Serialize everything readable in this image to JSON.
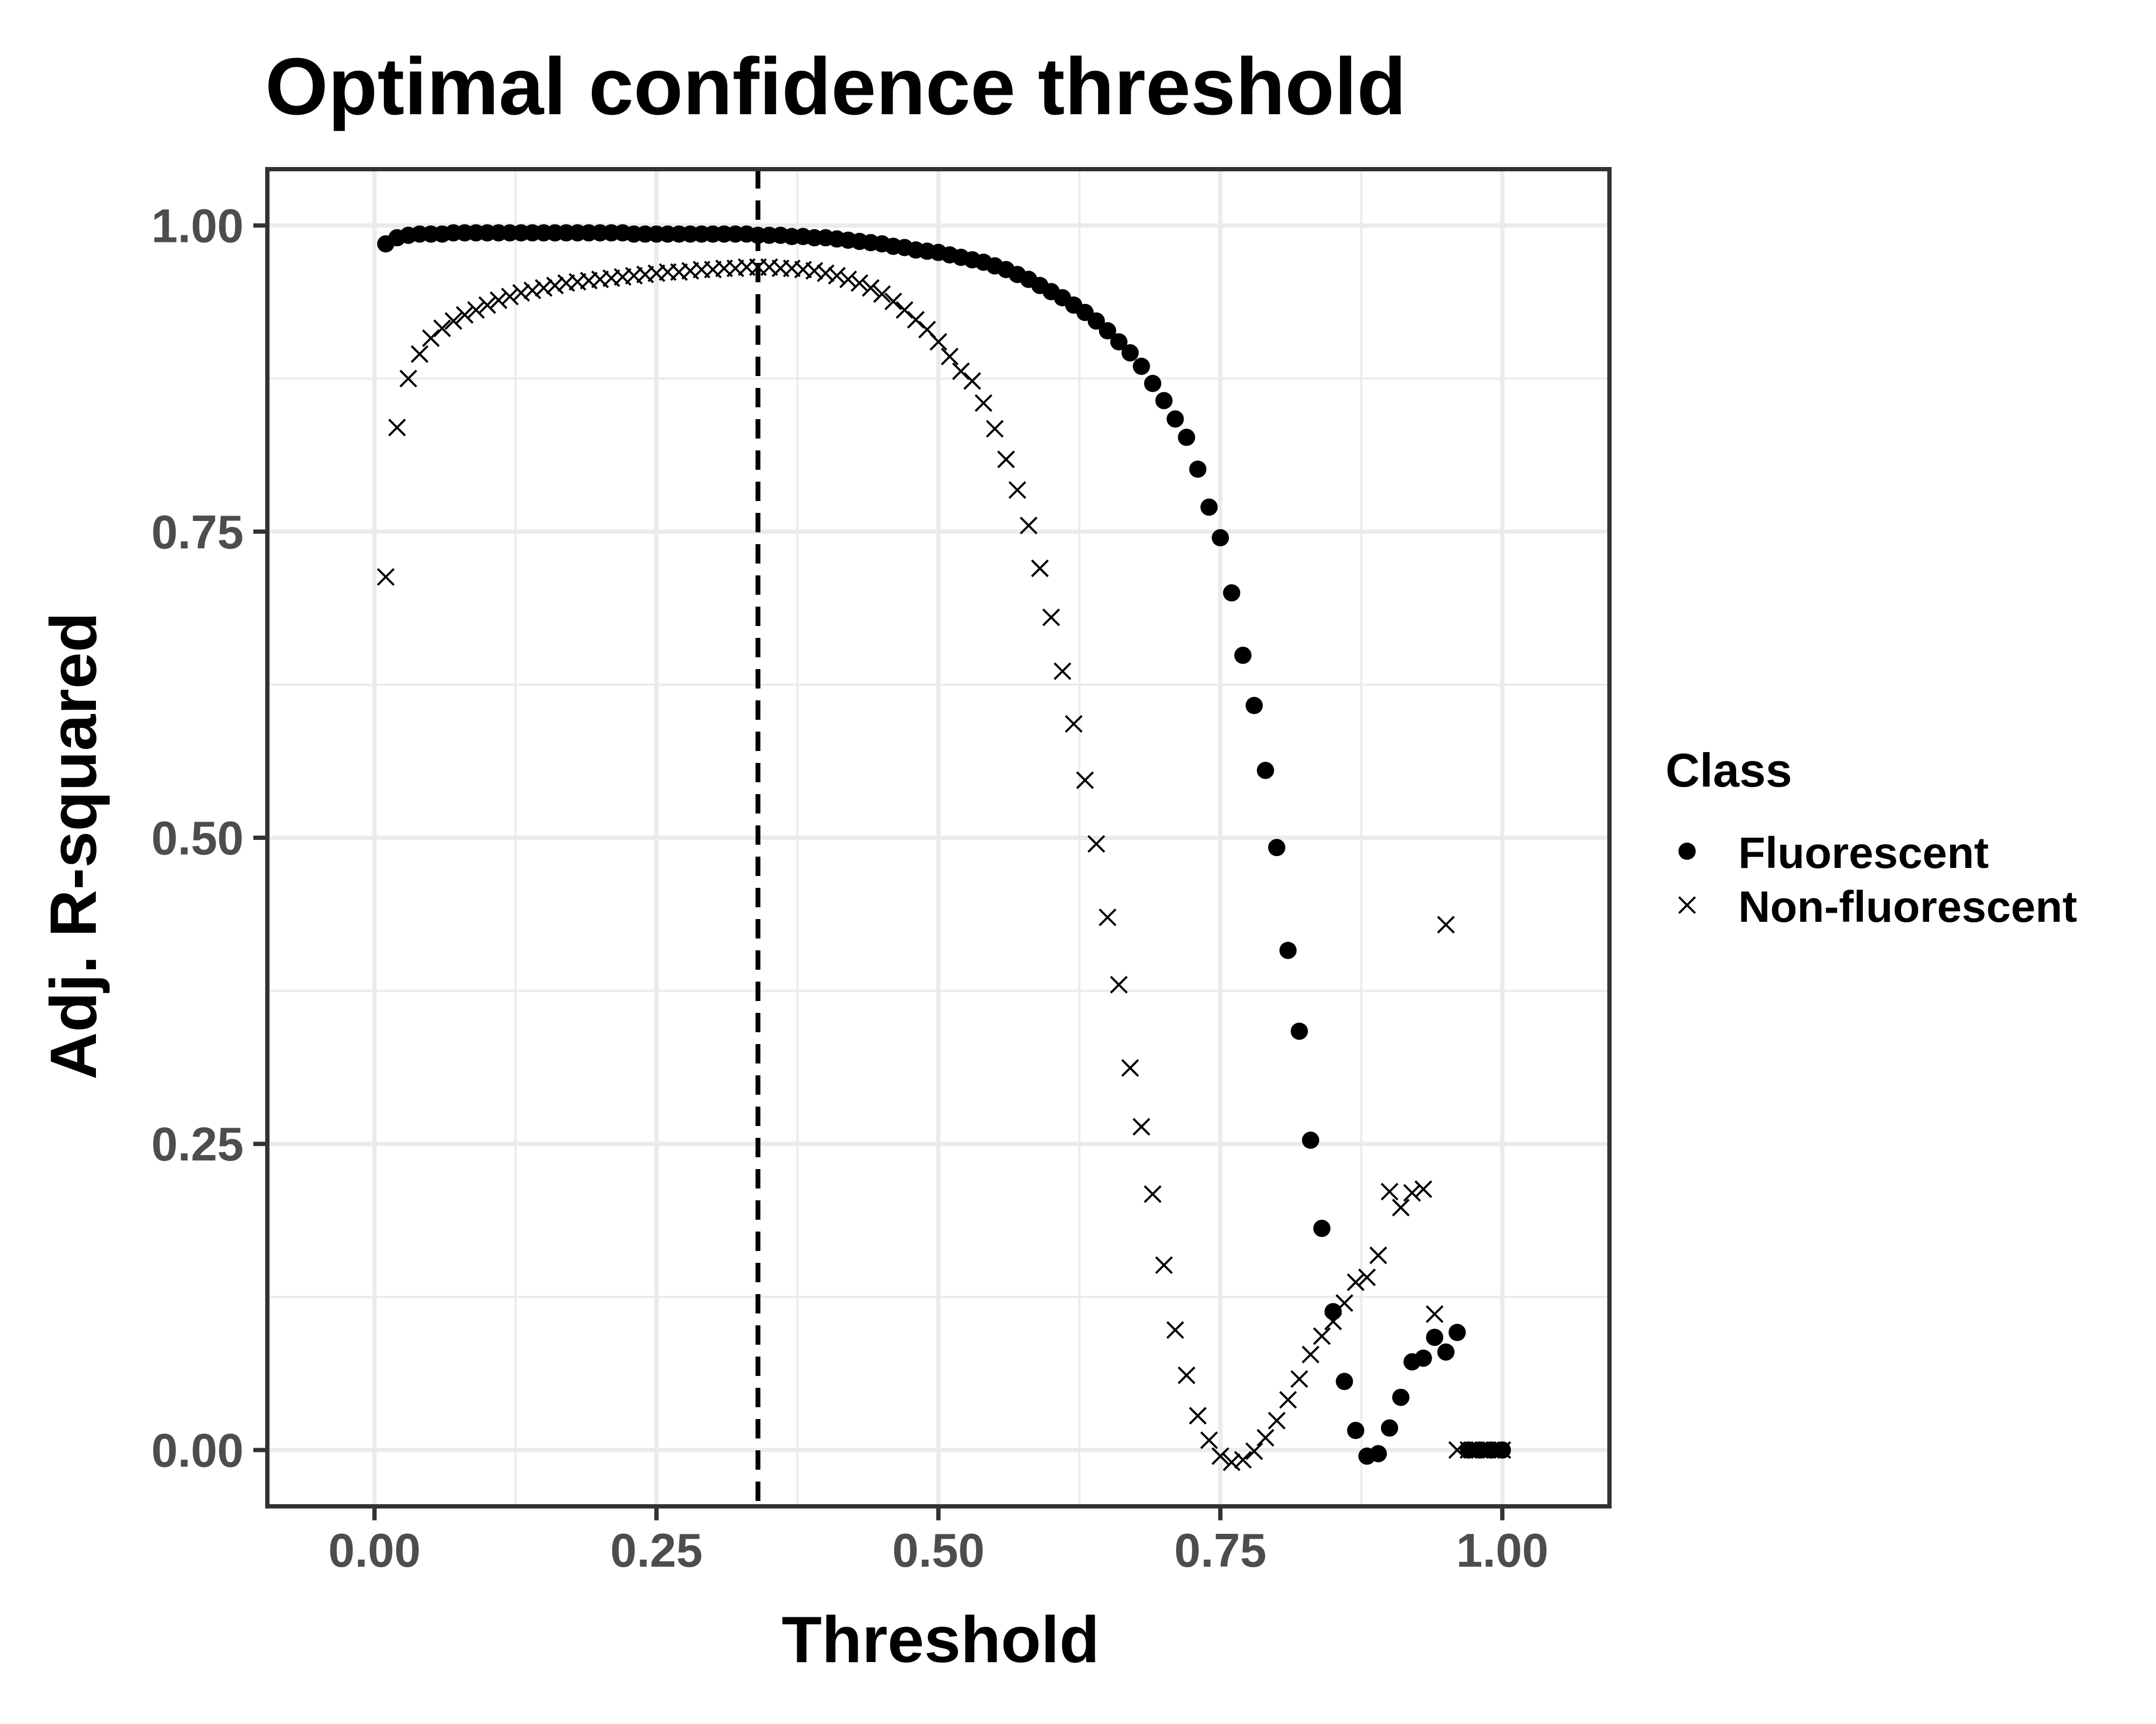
{
  "chart_data": {
    "type": "scatter",
    "title": "Optimal confidence threshold",
    "xlabel": "Threshold",
    "ylabel": "Adj. R-squared",
    "xlim": [
      -0.095,
      1.095
    ],
    "ylim": [
      -0.046,
      1.046
    ],
    "x_ticks": [
      "0.00",
      "0.25",
      "0.50",
      "0.75",
      "1.00"
    ],
    "y_ticks": [
      "0.00",
      "0.25",
      "0.50",
      "0.75",
      "1.00"
    ],
    "grid": true,
    "legend_position": "right",
    "legend_title": "Class",
    "reference_line": {
      "orientation": "vertical",
      "x": 0.34,
      "style": "dashed"
    },
    "series": [
      {
        "name": "Fluorescent",
        "marker": "filled-circle",
        "x": [
          0.01,
          0.02,
          0.03,
          0.04,
          0.05,
          0.06,
          0.07,
          0.08,
          0.09,
          0.1,
          0.11,
          0.12,
          0.13,
          0.14,
          0.15,
          0.16,
          0.17,
          0.18,
          0.19,
          0.2,
          0.21,
          0.22,
          0.23,
          0.24,
          0.25,
          0.26,
          0.27,
          0.28,
          0.29,
          0.3,
          0.31,
          0.32,
          0.33,
          0.34,
          0.35,
          0.36,
          0.37,
          0.38,
          0.39,
          0.4,
          0.41,
          0.42,
          0.43,
          0.44,
          0.45,
          0.46,
          0.47,
          0.48,
          0.49,
          0.5,
          0.51,
          0.52,
          0.53,
          0.54,
          0.55,
          0.56,
          0.57,
          0.58,
          0.59,
          0.6,
          0.61,
          0.62,
          0.63,
          0.64,
          0.65,
          0.66,
          0.67,
          0.68,
          0.69,
          0.7,
          0.71,
          0.72,
          0.73,
          0.74,
          0.75,
          0.76,
          0.77,
          0.78,
          0.79,
          0.8,
          0.81,
          0.82,
          0.83,
          0.84,
          0.85,
          0.86,
          0.87,
          0.88,
          0.89,
          0.9,
          0.91,
          0.92,
          0.93,
          0.94,
          0.95,
          0.96,
          0.97,
          0.98,
          0.99,
          1.0
        ],
        "y": [
          0.985,
          0.99,
          0.992,
          0.993,
          0.993,
          0.993,
          0.994,
          0.994,
          0.994,
          0.994,
          0.994,
          0.994,
          0.994,
          0.994,
          0.994,
          0.994,
          0.994,
          0.994,
          0.994,
          0.994,
          0.994,
          0.994,
          0.993,
          0.993,
          0.993,
          0.993,
          0.993,
          0.993,
          0.993,
          0.993,
          0.993,
          0.993,
          0.993,
          0.992,
          0.992,
          0.992,
          0.991,
          0.991,
          0.99,
          0.99,
          0.989,
          0.988,
          0.987,
          0.986,
          0.985,
          0.983,
          0.982,
          0.98,
          0.979,
          0.978,
          0.976,
          0.974,
          0.972,
          0.97,
          0.967,
          0.964,
          0.96,
          0.956,
          0.951,
          0.946,
          0.941,
          0.935,
          0.929,
          0.922,
          0.914,
          0.905,
          0.896,
          0.885,
          0.871,
          0.857,
          0.842,
          0.827,
          0.801,
          0.77,
          0.745,
          0.7,
          0.649,
          0.608,
          0.555,
          0.492,
          0.408,
          0.342,
          0.253,
          0.181,
          0.113,
          0.056,
          0.016,
          -0.005,
          -0.003,
          0.018,
          0.043,
          0.072,
          0.075,
          0.092,
          0.08,
          0.096,
          0.0,
          0.0,
          0.0,
          0.0
        ]
      },
      {
        "name": "Non-fluorescent",
        "marker": "x-cross",
        "x": [
          0.01,
          0.02,
          0.03,
          0.04,
          0.05,
          0.06,
          0.07,
          0.08,
          0.09,
          0.1,
          0.11,
          0.12,
          0.13,
          0.14,
          0.15,
          0.16,
          0.17,
          0.18,
          0.19,
          0.2,
          0.21,
          0.22,
          0.23,
          0.24,
          0.25,
          0.26,
          0.27,
          0.28,
          0.29,
          0.3,
          0.31,
          0.32,
          0.33,
          0.34,
          0.35,
          0.36,
          0.37,
          0.38,
          0.39,
          0.4,
          0.41,
          0.42,
          0.43,
          0.44,
          0.45,
          0.46,
          0.47,
          0.48,
          0.49,
          0.5,
          0.51,
          0.52,
          0.53,
          0.54,
          0.55,
          0.56,
          0.57,
          0.58,
          0.59,
          0.6,
          0.61,
          0.62,
          0.63,
          0.64,
          0.65,
          0.66,
          0.67,
          0.68,
          0.69,
          0.7,
          0.71,
          0.72,
          0.73,
          0.74,
          0.75,
          0.76,
          0.77,
          0.78,
          0.79,
          0.8,
          0.81,
          0.82,
          0.83,
          0.84,
          0.85,
          0.86,
          0.87,
          0.88,
          0.89,
          0.9,
          0.91,
          0.92,
          0.93,
          0.94,
          0.95,
          0.96,
          0.97,
          0.98,
          0.99,
          1.0
        ],
        "y": [
          0.713,
          0.835,
          0.875,
          0.895,
          0.908,
          0.916,
          0.922,
          0.927,
          0.931,
          0.935,
          0.939,
          0.942,
          0.945,
          0.947,
          0.949,
          0.951,
          0.953,
          0.954,
          0.955,
          0.956,
          0.957,
          0.958,
          0.959,
          0.96,
          0.961,
          0.962,
          0.962,
          0.963,
          0.964,
          0.964,
          0.965,
          0.965,
          0.966,
          0.966,
          0.966,
          0.965,
          0.965,
          0.964,
          0.963,
          0.961,
          0.959,
          0.956,
          0.953,
          0.949,
          0.944,
          0.938,
          0.931,
          0.923,
          0.915,
          0.905,
          0.893,
          0.881,
          0.873,
          0.855,
          0.834,
          0.809,
          0.784,
          0.755,
          0.72,
          0.68,
          0.636,
          0.593,
          0.547,
          0.495,
          0.435,
          0.38,
          0.312,
          0.264,
          0.209,
          0.151,
          0.098,
          0.061,
          0.028,
          0.008,
          -0.005,
          -0.01,
          -0.008,
          -0.001,
          0.01,
          0.024,
          0.041,
          0.058,
          0.078,
          0.093,
          0.105,
          0.12,
          0.137,
          0.141,
          0.159,
          0.211,
          0.198,
          0.21,
          0.213,
          0.111,
          0.429,
          0.0,
          0.0,
          0.0,
          0.0,
          0.0
        ]
      }
    ]
  }
}
